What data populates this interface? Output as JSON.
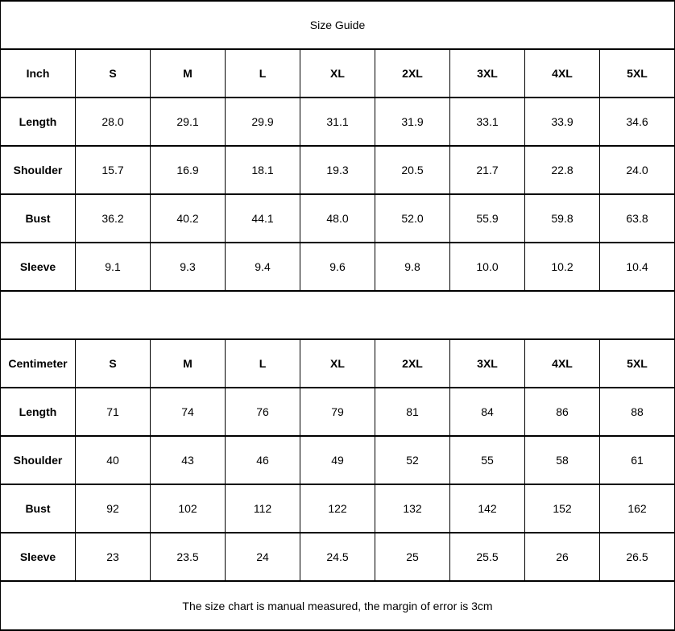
{
  "title": "Size Guide",
  "footer": "The size chart is manual measured, the margin of error is 3cm",
  "colors": {
    "border": "#000000",
    "background": "#ffffff",
    "text": "#000000"
  },
  "inch": {
    "unit": "Inch",
    "sizes": [
      "S",
      "M",
      "L",
      "XL",
      "2XL",
      "3XL",
      "4XL",
      "5XL"
    ],
    "rows": [
      {
        "label": "Length",
        "values": [
          "28.0",
          "29.1",
          "29.9",
          "31.1",
          "31.9",
          "33.1",
          "33.9",
          "34.6"
        ]
      },
      {
        "label": "Shoulder",
        "values": [
          "15.7",
          "16.9",
          "18.1",
          "19.3",
          "20.5",
          "21.7",
          "22.8",
          "24.0"
        ]
      },
      {
        "label": "Bust",
        "values": [
          "36.2",
          "40.2",
          "44.1",
          "48.0",
          "52.0",
          "55.9",
          "59.8",
          "63.8"
        ]
      },
      {
        "label": "Sleeve",
        "values": [
          "9.1",
          "9.3",
          "9.4",
          "9.6",
          "9.8",
          "10.0",
          "10.2",
          "10.4"
        ]
      }
    ]
  },
  "centimeter": {
    "unit": "Centimeter",
    "sizes": [
      "S",
      "M",
      "L",
      "XL",
      "2XL",
      "3XL",
      "4XL",
      "5XL"
    ],
    "rows": [
      {
        "label": "Length",
        "values": [
          "71",
          "74",
          "76",
          "79",
          "81",
          "84",
          "86",
          "88"
        ]
      },
      {
        "label": "Shoulder",
        "values": [
          "40",
          "43",
          "46",
          "49",
          "52",
          "55",
          "58",
          "61"
        ]
      },
      {
        "label": "Bust",
        "values": [
          "92",
          "102",
          "112",
          "122",
          "132",
          "142",
          "152",
          "162"
        ]
      },
      {
        "label": "Sleeve",
        "values": [
          "23",
          "23.5",
          "24",
          "24.5",
          "25",
          "25.5",
          "26",
          "26.5"
        ]
      }
    ]
  },
  "chart_data": [
    {
      "type": "table",
      "title": "Size Guide",
      "unit": "Inch",
      "columns": [
        "Inch",
        "S",
        "M",
        "L",
        "XL",
        "2XL",
        "3XL",
        "4XL",
        "5XL"
      ],
      "rows": [
        [
          "Length",
          28.0,
          29.1,
          29.9,
          31.1,
          31.9,
          33.1,
          33.9,
          34.6
        ],
        [
          "Shoulder",
          15.7,
          16.9,
          18.1,
          19.3,
          20.5,
          21.7,
          22.8,
          24.0
        ],
        [
          "Bust",
          36.2,
          40.2,
          44.1,
          48.0,
          52.0,
          55.9,
          59.8,
          63.8
        ],
        [
          "Sleeve",
          9.1,
          9.3,
          9.4,
          9.6,
          9.8,
          10.0,
          10.2,
          10.4
        ]
      ]
    },
    {
      "type": "table",
      "unit": "Centimeter",
      "columns": [
        "Centimeter",
        "S",
        "M",
        "L",
        "XL",
        "2XL",
        "3XL",
        "4XL",
        "5XL"
      ],
      "rows": [
        [
          "Length",
          71,
          74,
          76,
          79,
          81,
          84,
          86,
          88
        ],
        [
          "Shoulder",
          40,
          43,
          46,
          49,
          52,
          55,
          58,
          61
        ],
        [
          "Bust",
          92,
          102,
          112,
          122,
          132,
          142,
          152,
          162
        ],
        [
          "Sleeve",
          23,
          23.5,
          24,
          24.5,
          25,
          25.5,
          26,
          26.5
        ]
      ],
      "annotation": "The size chart is manual measured, the margin of error is 3cm"
    }
  ]
}
